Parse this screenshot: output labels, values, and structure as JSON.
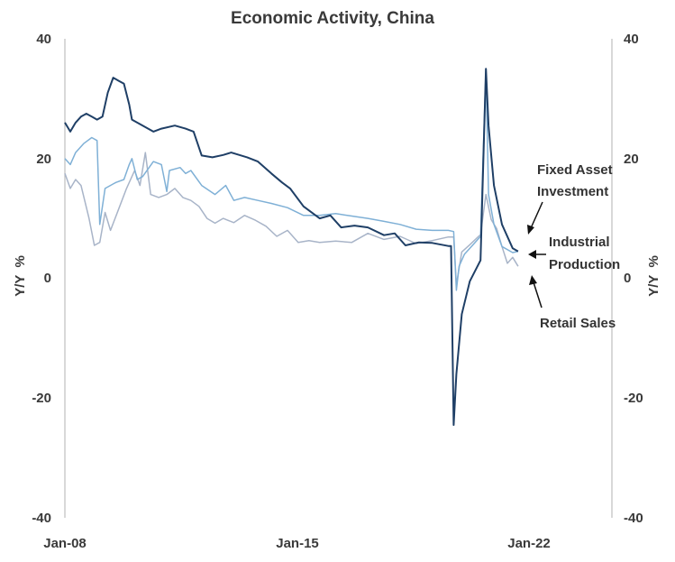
{
  "chart_data": {
    "type": "line",
    "title": "Economic Activity, China",
    "ylabel_left": "Y/Y  %",
    "ylabel_right": "Y/Y  %",
    "x_ticks": [
      "Jan-08",
      "Jan-15",
      "Jan-22"
    ],
    "y_ticks_left": [
      "40",
      "20",
      "0",
      "-20",
      "-40"
    ],
    "y_ticks_right": [
      "40",
      "20",
      "0",
      "-20",
      "-40"
    ],
    "xlim": [
      "2008-01",
      "2025-01"
    ],
    "ylim": [
      -40,
      40
    ],
    "grid": false,
    "annotations": [
      {
        "lines": [
          "Fixed Asset",
          "Investment"
        ],
        "points_to": "Fixed Asset Investment"
      },
      {
        "lines": [
          "Industrial",
          "Production"
        ],
        "points_to": "Industrial Production"
      },
      {
        "lines": [
          "Retail Sales"
        ],
        "points_to": "Retail Sales"
      }
    ],
    "series": [
      {
        "key": "Fixed Asset Investment",
        "color": "#1f3f66",
        "width": 2,
        "points": [
          [
            "2008-01",
            26
          ],
          [
            "2008-03",
            24.5
          ],
          [
            "2008-05",
            26
          ],
          [
            "2008-07",
            27
          ],
          [
            "2008-09",
            27.5
          ],
          [
            "2008-11",
            27
          ],
          [
            "2009-01",
            26.5
          ],
          [
            "2009-03",
            27
          ],
          [
            "2009-05",
            31
          ],
          [
            "2009-07",
            33.5
          ],
          [
            "2009-09",
            33
          ],
          [
            "2009-11",
            32.5
          ],
          [
            "2010-01",
            29
          ],
          [
            "2010-02",
            26.5
          ],
          [
            "2010-06",
            25.5
          ],
          [
            "2010-10",
            24.5
          ],
          [
            "2011-01",
            25
          ],
          [
            "2011-06",
            25.5
          ],
          [
            "2011-10",
            25
          ],
          [
            "2012-01",
            24.5
          ],
          [
            "2012-04",
            20.5
          ],
          [
            "2012-08",
            20.2
          ],
          [
            "2012-12",
            20.6
          ],
          [
            "2013-03",
            21
          ],
          [
            "2013-09",
            20.2
          ],
          [
            "2014-01",
            19.5
          ],
          [
            "2014-06",
            17.5
          ],
          [
            "2014-10",
            16
          ],
          [
            "2015-01",
            15
          ],
          [
            "2015-06",
            12
          ],
          [
            "2015-12",
            10
          ],
          [
            "2016-04",
            10.5
          ],
          [
            "2016-08",
            8.5
          ],
          [
            "2017-01",
            8.8
          ],
          [
            "2017-06",
            8.5
          ],
          [
            "2017-12",
            7.2
          ],
          [
            "2018-04",
            7.5
          ],
          [
            "2018-08",
            5.5
          ],
          [
            "2019-01",
            6
          ],
          [
            "2019-06",
            5.9
          ],
          [
            "2019-12",
            5.4
          ],
          [
            "2020-01",
            5.4
          ],
          [
            "2020-02",
            -24.5
          ],
          [
            "2020-03",
            -16
          ],
          [
            "2020-05",
            -6
          ],
          [
            "2020-08",
            -0.5
          ],
          [
            "2020-12",
            3
          ],
          [
            "2021-02",
            35
          ],
          [
            "2021-03",
            25.5
          ],
          [
            "2021-05",
            15.5
          ],
          [
            "2021-08",
            9
          ],
          [
            "2021-12",
            5
          ],
          [
            "2022-02",
            4.5
          ]
        ]
      },
      {
        "key": "Industrial Production",
        "color": "#7fb0d6",
        "width": 1.5,
        "points": [
          [
            "2008-01",
            20
          ],
          [
            "2008-03",
            19
          ],
          [
            "2008-05",
            21
          ],
          [
            "2008-08",
            22.5
          ],
          [
            "2008-11",
            23.5
          ],
          [
            "2009-01",
            23
          ],
          [
            "2009-02",
            9
          ],
          [
            "2009-04",
            15
          ],
          [
            "2009-08",
            16
          ],
          [
            "2009-11",
            16.5
          ],
          [
            "2010-01",
            19
          ],
          [
            "2010-02",
            20
          ],
          [
            "2010-04",
            16.5
          ],
          [
            "2010-06",
            17
          ],
          [
            "2010-10",
            19.5
          ],
          [
            "2011-01",
            19
          ],
          [
            "2011-03",
            14.5
          ],
          [
            "2011-04",
            18
          ],
          [
            "2011-08",
            18.5
          ],
          [
            "2011-10",
            17.5
          ],
          [
            "2011-12",
            18
          ],
          [
            "2012-04",
            15.5
          ],
          [
            "2012-09",
            14
          ],
          [
            "2013-01",
            15.5
          ],
          [
            "2013-04",
            13
          ],
          [
            "2013-08",
            13.5
          ],
          [
            "2014-01",
            13
          ],
          [
            "2014-06",
            12.5
          ],
          [
            "2014-12",
            11.8
          ],
          [
            "2015-06",
            10.5
          ],
          [
            "2015-12",
            10.5
          ],
          [
            "2016-06",
            10.8
          ],
          [
            "2016-12",
            10.4
          ],
          [
            "2017-06",
            10
          ],
          [
            "2017-12",
            9.5
          ],
          [
            "2018-06",
            9
          ],
          [
            "2018-12",
            8.2
          ],
          [
            "2019-06",
            8
          ],
          [
            "2019-12",
            8
          ],
          [
            "2020-02",
            7.8
          ],
          [
            "2020-03",
            -2
          ],
          [
            "2020-04",
            2
          ],
          [
            "2020-06",
            4
          ],
          [
            "2020-09",
            5.5
          ],
          [
            "2020-12",
            7
          ],
          [
            "2021-02",
            35
          ],
          [
            "2021-03",
            14
          ],
          [
            "2021-05",
            9
          ],
          [
            "2021-08",
            5.3
          ],
          [
            "2021-12",
            4.3
          ],
          [
            "2022-02",
            4.5
          ]
        ]
      },
      {
        "key": "Retail Sales",
        "color": "#a8b4c8",
        "width": 1.5,
        "points": [
          [
            "2008-01",
            17.5
          ],
          [
            "2008-03",
            15
          ],
          [
            "2008-05",
            16.5
          ],
          [
            "2008-07",
            15.5
          ],
          [
            "2008-10",
            10
          ],
          [
            "2008-12",
            5.5
          ],
          [
            "2009-02",
            6
          ],
          [
            "2009-04",
            11
          ],
          [
            "2009-06",
            8
          ],
          [
            "2009-09",
            11.5
          ],
          [
            "2009-12",
            15
          ],
          [
            "2010-03",
            18
          ],
          [
            "2010-05",
            15.5
          ],
          [
            "2010-07",
            21
          ],
          [
            "2010-09",
            14
          ],
          [
            "2010-12",
            13.5
          ],
          [
            "2011-03",
            14
          ],
          [
            "2011-06",
            15
          ],
          [
            "2011-09",
            13.5
          ],
          [
            "2011-12",
            13
          ],
          [
            "2012-03",
            12
          ],
          [
            "2012-06",
            10
          ],
          [
            "2012-09",
            9.2
          ],
          [
            "2012-12",
            10
          ],
          [
            "2013-04",
            9.3
          ],
          [
            "2013-08",
            10.5
          ],
          [
            "2013-12",
            9.7
          ],
          [
            "2014-04",
            8.7
          ],
          [
            "2014-08",
            7
          ],
          [
            "2014-12",
            8
          ],
          [
            "2015-04",
            6
          ],
          [
            "2015-08",
            6.3
          ],
          [
            "2015-12",
            6
          ],
          [
            "2016-06",
            6.2
          ],
          [
            "2016-12",
            6
          ],
          [
            "2017-06",
            7.5
          ],
          [
            "2017-12",
            6.5
          ],
          [
            "2018-06",
            7
          ],
          [
            "2018-12",
            5.8
          ],
          [
            "2019-06",
            6.3
          ],
          [
            "2019-12",
            6.9
          ],
          [
            "2020-02",
            6.9
          ],
          [
            "2020-03",
            -1.1
          ],
          [
            "2020-05",
            4.4
          ],
          [
            "2020-08",
            5.6
          ],
          [
            "2020-12",
            7.3
          ],
          [
            "2021-02",
            14
          ],
          [
            "2021-04",
            9.8
          ],
          [
            "2021-06",
            8.3
          ],
          [
            "2021-08",
            5.3
          ],
          [
            "2021-10",
            2.5
          ],
          [
            "2021-12",
            3.5
          ],
          [
            "2022-02",
            2
          ]
        ]
      }
    ]
  }
}
